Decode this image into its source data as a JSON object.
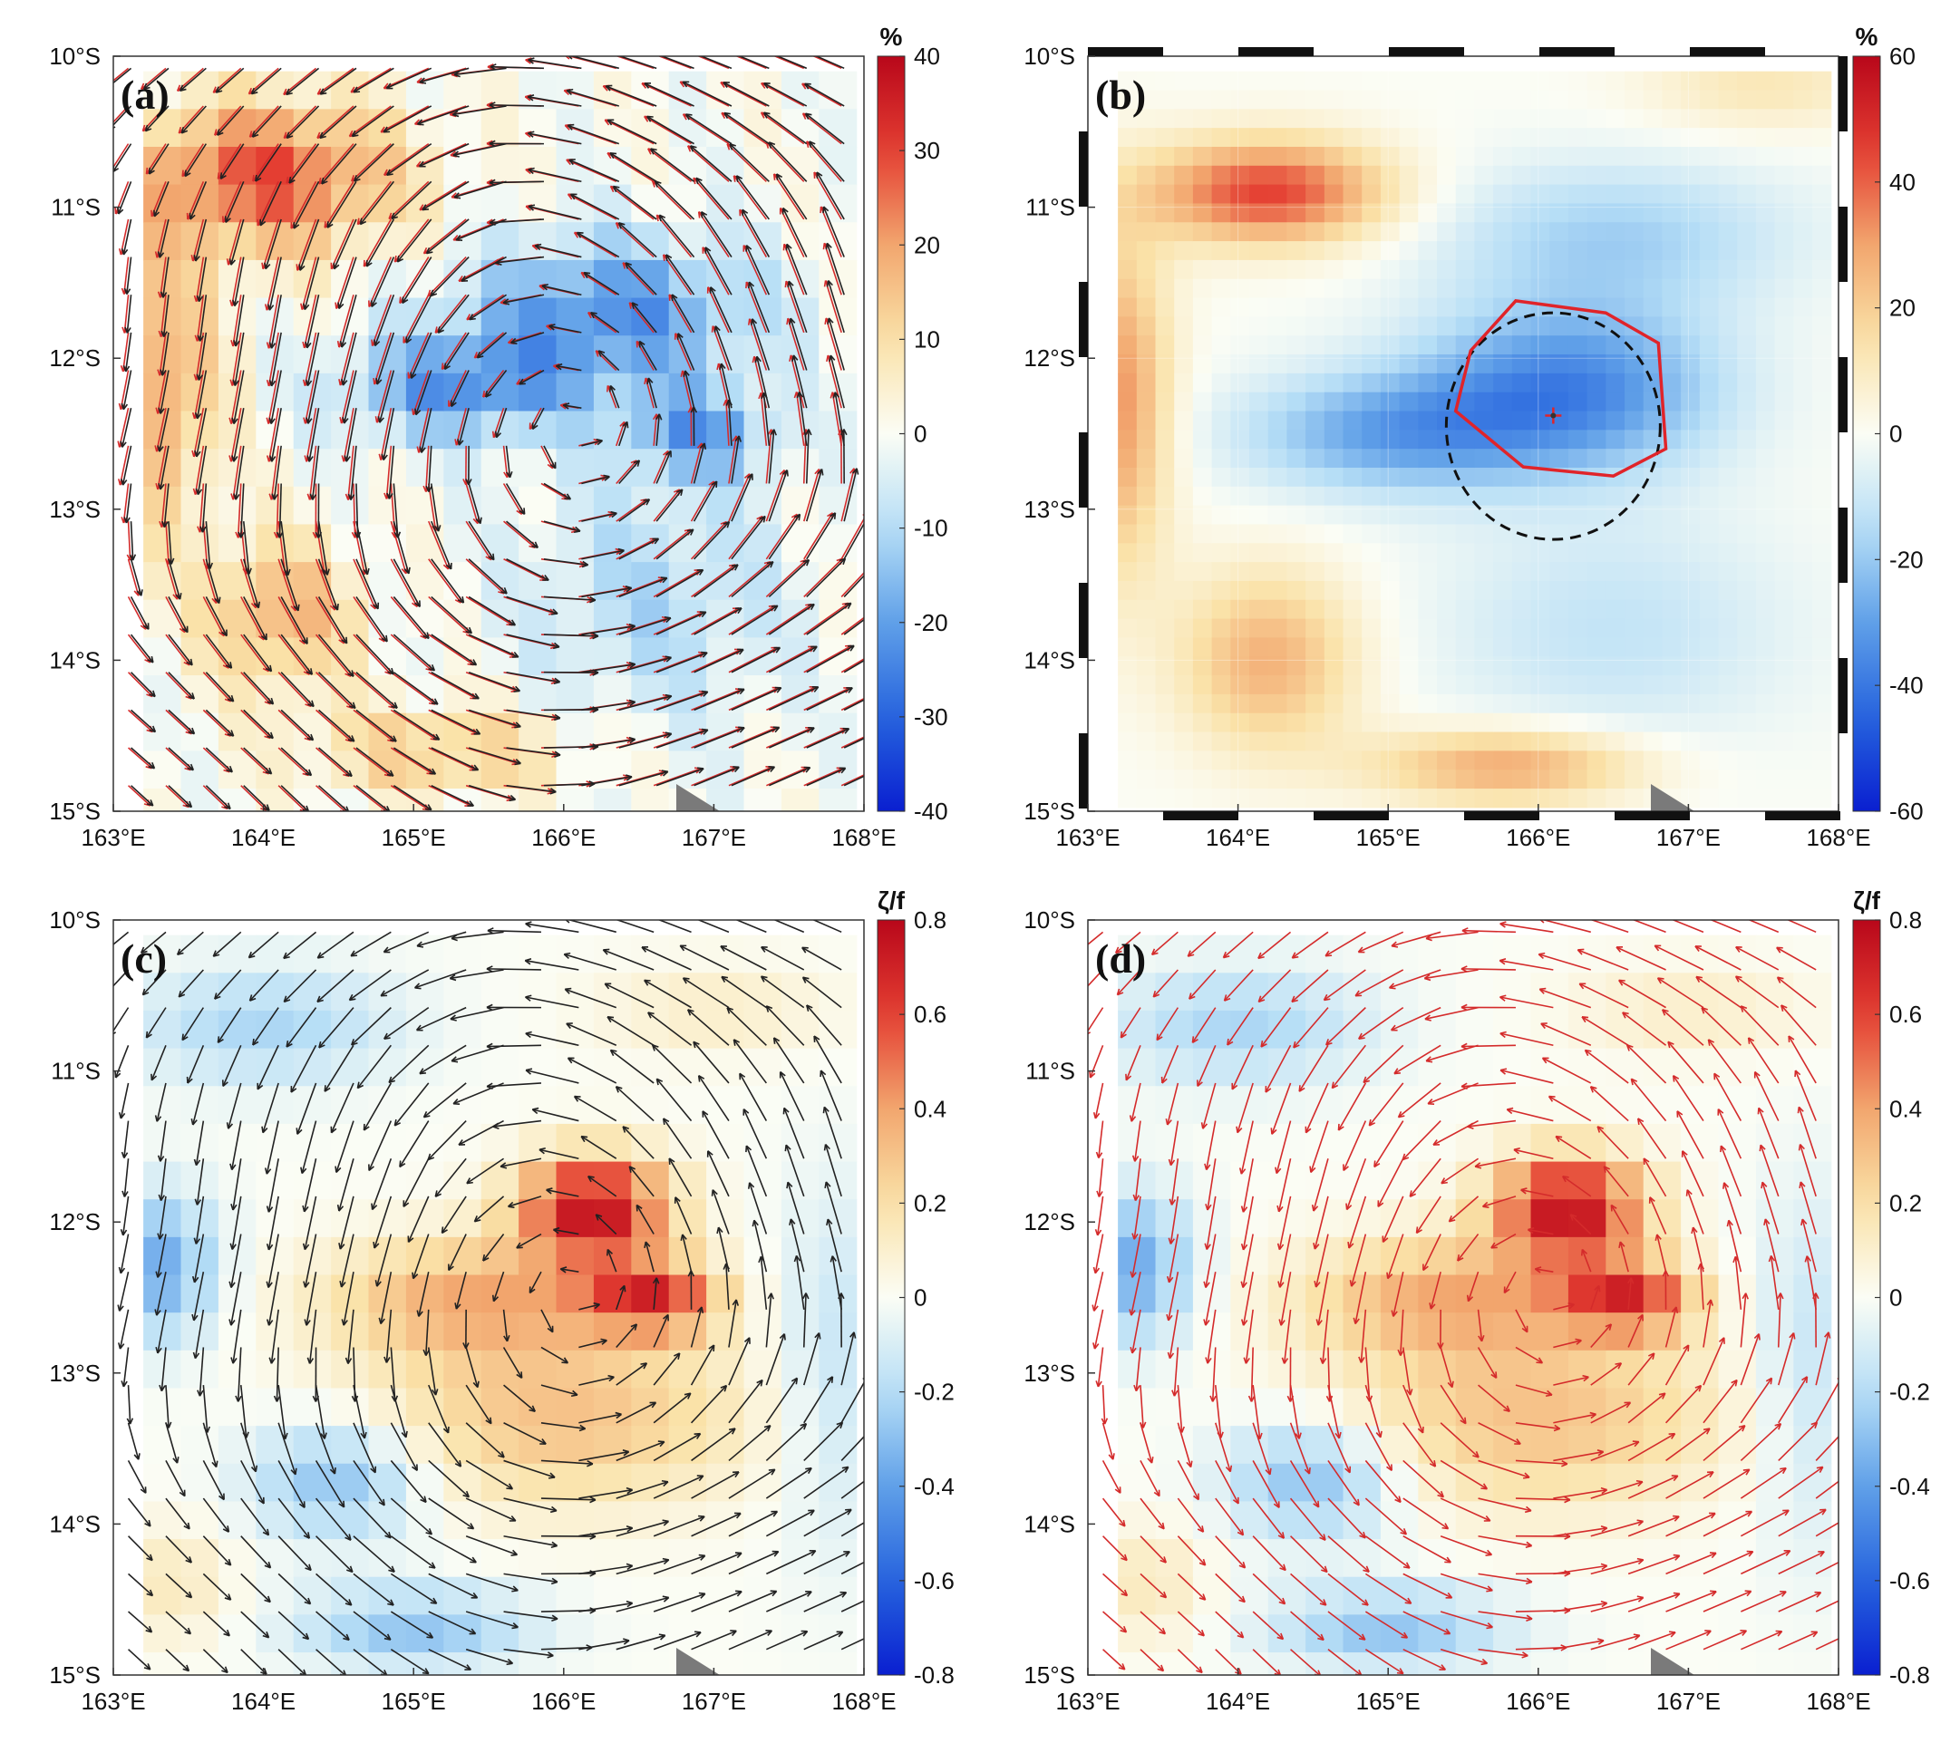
{
  "figure": {
    "panels": [
      "(a)",
      "(b)",
      "(c)",
      "(d)"
    ],
    "colors": {
      "negative_end": "#0a1fd0",
      "positive_end": "#b8071a",
      "mid": "#fbfdf5",
      "vector_red": "#d42b2b",
      "vector_black": "#222222",
      "eddy_contour": "#e0242a",
      "boundary": "#111111",
      "marker": "#7a7a7a"
    }
  },
  "chart_data": [
    {
      "type": "heatmap",
      "panel": "(a)",
      "xlabel": "",
      "ylabel": "",
      "xlim": [
        163,
        168
      ],
      "ylim": [
        -15,
        -10
      ],
      "x_ticks": [
        "163°E",
        "164°E",
        "165°E",
        "166°E",
        "167°E",
        "168°E"
      ],
      "y_ticks": [
        "10°S",
        "11°S",
        "12°S",
        "13°S",
        "14°S",
        "15°S"
      ],
      "colorbar": {
        "unit": "%",
        "min": -40,
        "max": 40,
        "ticks": [
          "40",
          "30",
          "20",
          "10",
          "0",
          "-10",
          "-20",
          "-30",
          "-40"
        ]
      },
      "field": "anomaly (%) on 0.25° grid",
      "vectors": "anticyclonic (counter-clockwise) surface currents, red and black arrows",
      "eddy_center": [
        166.1,
        -12.4
      ]
    },
    {
      "type": "heatmap",
      "panel": "(b)",
      "xlim": [
        163,
        168
      ],
      "ylim": [
        -15,
        -10
      ],
      "x_ticks": [
        "163°E",
        "164°E",
        "165°E",
        "166°E",
        "167°E",
        "168°E"
      ],
      "y_ticks": [
        "10°S",
        "11°S",
        "12°S",
        "13°S",
        "14°S",
        "15°S"
      ],
      "colorbar": {
        "unit": "%",
        "min": -60,
        "max": 60,
        "ticks": [
          "60",
          "40",
          "20",
          "0",
          "-20",
          "-40",
          "-60"
        ]
      },
      "field": "smoothed anomaly (%)",
      "eddy_center": [
        166.1,
        -12.4
      ],
      "eddy_core_contour": "solid red",
      "eddy_edge_contour": "dashed black"
    },
    {
      "type": "heatmap",
      "panel": "(c)",
      "xlim": [
        163,
        168
      ],
      "ylim": [
        -15,
        -10
      ],
      "x_ticks": [
        "163°E",
        "164°E",
        "165°E",
        "166°E",
        "167°E",
        "168°E"
      ],
      "y_ticks": [
        "10°S",
        "11°S",
        "12°S",
        "13°S",
        "14°S",
        "15°S"
      ],
      "colorbar": {
        "unit": "ζ/f",
        "min": -0.8,
        "max": 0.8,
        "ticks": [
          "0.8",
          "0.6",
          "0.4",
          "0.2",
          "0",
          "-0.2",
          "-0.4",
          "-0.6",
          "-0.8"
        ]
      },
      "field": "relative vorticity normalized by f",
      "vectors": "black arrows",
      "eddy_center": [
        166.1,
        -12.4
      ]
    },
    {
      "type": "heatmap",
      "panel": "(d)",
      "xlim": [
        163,
        168
      ],
      "ylim": [
        -15,
        -10
      ],
      "x_ticks": [
        "163°E",
        "164°E",
        "165°E",
        "166°E",
        "167°E",
        "168°E"
      ],
      "y_ticks": [
        "10°S",
        "11°S",
        "12°S",
        "13°S",
        "14°S",
        "15°S"
      ],
      "colorbar": {
        "unit": "ζ/f",
        "min": -0.8,
        "max": 0.8,
        "ticks": [
          "0.8",
          "0.6",
          "0.4",
          "0.2",
          "0",
          "-0.2",
          "-0.4",
          "-0.6",
          "-0.8"
        ]
      },
      "field": "relative vorticity normalized by f",
      "vectors": "red arrows",
      "eddy_center": [
        166.1,
        -12.4
      ]
    }
  ]
}
